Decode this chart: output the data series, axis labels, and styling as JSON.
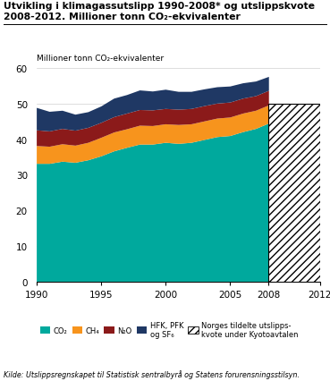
{
  "ylabel": "Millioner tonn CO₂-ekvivalenter",
  "source": "Kilde: Utslippsregnskapet til Statistisk sentralbyrå og Statens forurensningsstilsyn.",
  "title_line1": "Utvikling i klimagassutslipp 1990-2008* og utslippskvote",
  "title_line2": "2008-2012. Millioner tonn CO₂-ekvivalenter",
  "years": [
    1990,
    1991,
    1992,
    1993,
    1994,
    1995,
    1996,
    1997,
    1998,
    1999,
    2000,
    2001,
    2002,
    2003,
    2004,
    2005,
    2006,
    2007,
    2008
  ],
  "co2": [
    33.2,
    33.2,
    33.8,
    33.5,
    34.2,
    35.3,
    36.7,
    37.7,
    38.6,
    38.6,
    39.1,
    38.8,
    39.1,
    39.9,
    40.7,
    41.0,
    42.1,
    43.0,
    44.5
  ],
  "ch4": [
    5.0,
    4.8,
    4.9,
    4.8,
    4.9,
    5.2,
    5.3,
    5.2,
    5.3,
    5.2,
    5.2,
    5.3,
    5.2,
    5.2,
    5.2,
    5.2,
    5.2,
    5.1,
    5.1
  ],
  "n2o": [
    4.4,
    4.3,
    4.3,
    4.2,
    4.2,
    4.2,
    4.3,
    4.4,
    4.4,
    4.4,
    4.3,
    4.3,
    4.3,
    4.3,
    4.2,
    4.2,
    4.2,
    4.1,
    4.1
  ],
  "hfk": [
    6.3,
    5.5,
    5.1,
    4.5,
    4.4,
    4.6,
    5.2,
    5.2,
    5.5,
    5.3,
    5.4,
    5.0,
    4.8,
    4.7,
    4.6,
    4.5,
    4.3,
    4.1,
    3.9
  ],
  "co2_color": "#00a99d",
  "ch4_color": "#f7941d",
  "n2o_color": "#8b1a1a",
  "hfk_color": "#1f3864",
  "quota_year_start": 2008,
  "quota_year_end": 2012,
  "quota_value": 50.0,
  "ylim": [
    0,
    60
  ],
  "yticks": [
    0,
    10,
    20,
    30,
    40,
    50,
    60
  ],
  "xticks": [
    1990,
    1995,
    2000,
    2005,
    2008,
    2012
  ]
}
